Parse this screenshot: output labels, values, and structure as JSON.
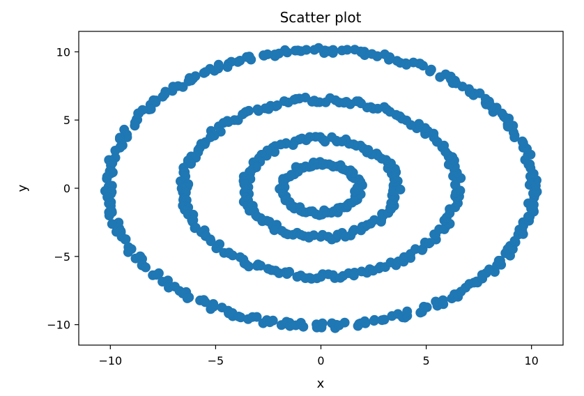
{
  "chart_data": {
    "type": "scatter",
    "title": "Scatter plot",
    "xlabel": "x",
    "ylabel": "y",
    "xlim": [
      -11.5,
      11.5
    ],
    "ylim": [
      -11.5,
      11.5
    ],
    "xticks": [
      -10,
      -5,
      0,
      5,
      10
    ],
    "yticks": [
      -10,
      -5,
      0,
      5,
      10
    ],
    "xtick_labels": [
      "−10",
      "−5",
      "0",
      "5",
      "10"
    ],
    "ytick_labels": [
      "−10",
      "−5",
      "0",
      "5",
      "10"
    ],
    "grid": false,
    "marker_color": "#1f77b4",
    "series": [
      {
        "rings": [
          {
            "radius": 1.8,
            "points": 80,
            "noise": 0.18
          },
          {
            "radius": 3.6,
            "points": 120,
            "noise": 0.2
          },
          {
            "radius": 6.5,
            "points": 200,
            "noise": 0.2
          },
          {
            "radius": 10.1,
            "points": 300,
            "noise": 0.2
          }
        ]
      }
    ]
  }
}
